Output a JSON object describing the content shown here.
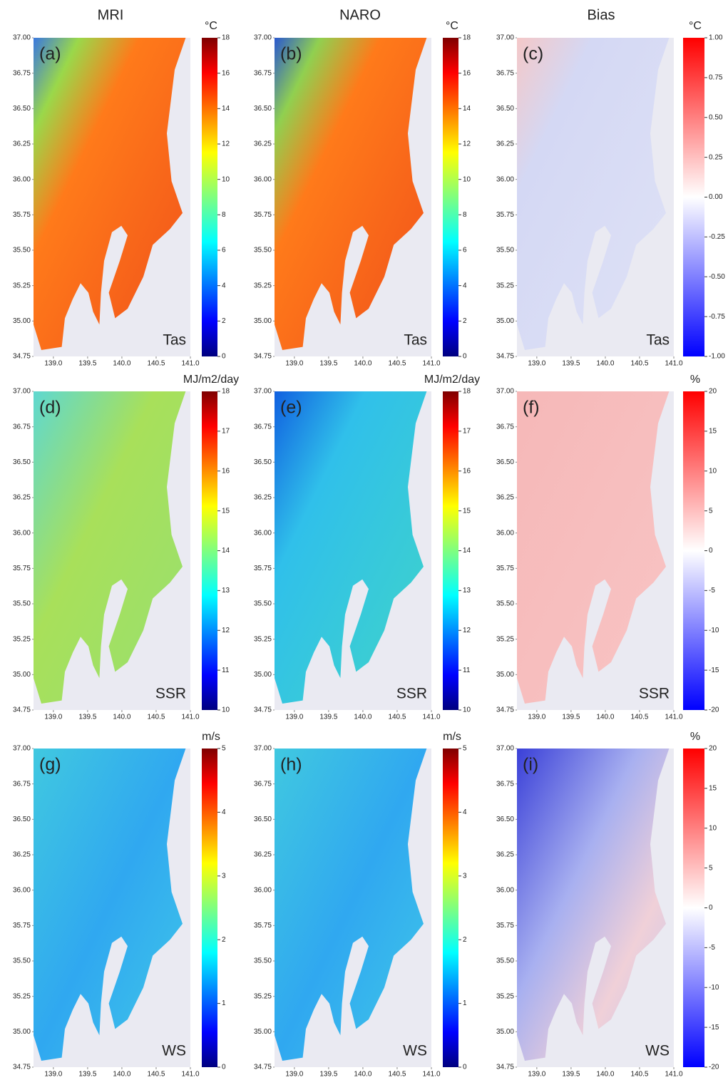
{
  "chart_data": [
    {
      "type": "map",
      "title": "MRI",
      "panel_label": "(a)",
      "variable": "Tas",
      "colorbar_label": "°C",
      "cmap": "jet",
      "xlim": [
        138.71,
        141
      ],
      "ylim": [
        34.75,
        37
      ],
      "xticks": [
        {
          "value": 139,
          "label": "139.0"
        },
        139.5,
        {
          "value": 140,
          "label": "140.0"
        },
        140.5,
        {
          "value": 141,
          "label": "141.0"
        }
      ],
      "yticks": [
        34.75,
        {
          "value": 35,
          "label": "35.00"
        },
        35.25,
        {
          "value": 35.5,
          "label": "35.50"
        },
        35.75,
        {
          "value": 36,
          "label": "36.00"
        },
        36.25,
        {
          "value": 36.5,
          "label": "36.50"
        },
        36.75,
        {
          "value": 37,
          "label": "37.00"
        }
      ],
      "clim": [
        0,
        18
      ],
      "cticks": [
        0,
        2,
        4,
        6,
        8,
        10,
        12,
        14,
        16,
        18
      ]
    },
    {
      "type": "map",
      "title": "NARO",
      "panel_label": "(b)",
      "variable": "Tas",
      "colorbar_label": "°C",
      "cmap": "jet",
      "xlim": [
        138.71,
        141
      ],
      "ylim": [
        34.75,
        37
      ],
      "xticks": [
        {
          "value": 139,
          "label": "139.0"
        },
        139.5,
        {
          "value": 140,
          "label": "140.0"
        },
        140.5,
        {
          "value": 141,
          "label": "141.0"
        }
      ],
      "yticks": [
        34.75,
        {
          "value": 35,
          "label": "35.00"
        },
        35.25,
        {
          "value": 35.5,
          "label": "35.50"
        },
        35.75,
        {
          "value": 36,
          "label": "36.00"
        },
        36.25,
        {
          "value": 36.5,
          "label": "36.50"
        },
        36.75,
        {
          "value": 37,
          "label": "37.00"
        }
      ],
      "clim": [
        0,
        18
      ],
      "cticks": [
        0,
        2,
        4,
        6,
        8,
        10,
        12,
        14,
        16,
        18
      ]
    },
    {
      "type": "map",
      "title": "Bias",
      "panel_label": "(c)",
      "variable": "Tas",
      "colorbar_label": "°C",
      "cmap": "bwr",
      "xlim": [
        138.71,
        141
      ],
      "ylim": [
        34.75,
        37
      ],
      "xticks": [
        {
          "value": 139,
          "label": "139.0"
        },
        139.5,
        {
          "value": 140,
          "label": "140.0"
        },
        140.5,
        {
          "value": 141,
          "label": "141.0"
        }
      ],
      "yticks": [
        34.75,
        {
          "value": 35,
          "label": "35.00"
        },
        35.25,
        {
          "value": 35.5,
          "label": "35.50"
        },
        35.75,
        {
          "value": 36,
          "label": "36.00"
        },
        36.25,
        {
          "value": 36.5,
          "label": "36.50"
        },
        36.75,
        {
          "value": 37,
          "label": "37.00"
        }
      ],
      "clim": [
        -1,
        1
      ],
      "cticks": [
        {
          "value": -1,
          "label": "-1.00"
        },
        -0.75,
        {
          "value": -0.5,
          "label": "-0.50"
        },
        -0.25,
        {
          "value": 0,
          "label": "0.00"
        },
        0.25,
        {
          "value": 0.5,
          "label": "0.50"
        },
        0.75,
        {
          "value": 1,
          "label": "1.00"
        }
      ]
    },
    {
      "type": "map",
      "panel_label": "(d)",
      "variable": "SSR",
      "colorbar_label": "MJ/m2/day",
      "cmap": "jet",
      "xlim": [
        138.71,
        141
      ],
      "ylim": [
        34.75,
        37
      ],
      "xticks": [
        {
          "value": 139,
          "label": "139.0"
        },
        139.5,
        {
          "value": 140,
          "label": "140.0"
        },
        140.5,
        {
          "value": 141,
          "label": "141.0"
        }
      ],
      "yticks": [
        34.75,
        {
          "value": 35,
          "label": "35.00"
        },
        35.25,
        {
          "value": 35.5,
          "label": "35.50"
        },
        35.75,
        {
          "value": 36,
          "label": "36.00"
        },
        36.25,
        {
          "value": 36.5,
          "label": "36.50"
        },
        36.75,
        {
          "value": 37,
          "label": "37.00"
        }
      ],
      "clim": [
        10,
        18
      ],
      "cticks": [
        10,
        11,
        12,
        13,
        14,
        15,
        16,
        17,
        18
      ]
    },
    {
      "type": "map",
      "panel_label": "(e)",
      "variable": "SSR",
      "colorbar_label": "MJ/m2/day",
      "cmap": "jet",
      "xlim": [
        138.71,
        141
      ],
      "ylim": [
        34.75,
        37
      ],
      "xticks": [
        {
          "value": 139,
          "label": "139.0"
        },
        139.5,
        {
          "value": 140,
          "label": "140.0"
        },
        140.5,
        {
          "value": 141,
          "label": "141.0"
        }
      ],
      "yticks": [
        34.75,
        {
          "value": 35,
          "label": "35.00"
        },
        35.25,
        {
          "value": 35.5,
          "label": "35.50"
        },
        35.75,
        {
          "value": 36,
          "label": "36.00"
        },
        36.25,
        {
          "value": 36.5,
          "label": "36.50"
        },
        36.75,
        {
          "value": 37,
          "label": "37.00"
        }
      ],
      "clim": [
        10,
        18
      ],
      "cticks": [
        10,
        11,
        12,
        13,
        14,
        15,
        16,
        17,
        18
      ]
    },
    {
      "type": "map",
      "panel_label": "(f)",
      "variable": "SSR",
      "colorbar_label": "%",
      "cmap": "bwr",
      "xlim": [
        138.71,
        141
      ],
      "ylim": [
        34.75,
        37
      ],
      "xticks": [
        {
          "value": 139,
          "label": "139.0"
        },
        139.5,
        {
          "value": 140,
          "label": "140.0"
        },
        140.5,
        {
          "value": 141,
          "label": "141.0"
        }
      ],
      "yticks": [
        34.75,
        {
          "value": 35,
          "label": "35.00"
        },
        35.25,
        {
          "value": 35.5,
          "label": "35.50"
        },
        35.75,
        {
          "value": 36,
          "label": "36.00"
        },
        36.25,
        {
          "value": 36.5,
          "label": "36.50"
        },
        36.75,
        {
          "value": 37,
          "label": "37.00"
        }
      ],
      "clim": [
        -20,
        20
      ],
      "cticks": [
        -20,
        -15,
        -10,
        -5,
        0,
        5,
        10,
        15,
        20
      ]
    },
    {
      "type": "map",
      "panel_label": "(g)",
      "variable": "WS",
      "colorbar_label": "m/s",
      "cmap": "jet",
      "xlim": [
        138.71,
        141
      ],
      "ylim": [
        34.75,
        37
      ],
      "xticks": [
        {
          "value": 139,
          "label": "139.0"
        },
        139.5,
        {
          "value": 140,
          "label": "140.0"
        },
        140.5,
        {
          "value": 141,
          "label": "141.0"
        }
      ],
      "yticks": [
        34.75,
        {
          "value": 35,
          "label": "35.00"
        },
        35.25,
        {
          "value": 35.5,
          "label": "35.50"
        },
        35.75,
        {
          "value": 36,
          "label": "36.00"
        },
        36.25,
        {
          "value": 36.5,
          "label": "36.50"
        },
        36.75,
        {
          "value": 37,
          "label": "37.00"
        }
      ],
      "clim": [
        0,
        5
      ],
      "cticks": [
        0,
        1,
        2,
        3,
        4,
        5
      ]
    },
    {
      "type": "map",
      "panel_label": "(h)",
      "variable": "WS",
      "colorbar_label": "m/s",
      "cmap": "jet",
      "xlim": [
        138.71,
        141
      ],
      "ylim": [
        34.75,
        37
      ],
      "xticks": [
        {
          "value": 139,
          "label": "139.0"
        },
        139.5,
        {
          "value": 140,
          "label": "140.0"
        },
        140.5,
        {
          "value": 141,
          "label": "141.0"
        }
      ],
      "yticks": [
        34.75,
        {
          "value": 35,
          "label": "35.00"
        },
        35.25,
        {
          "value": 35.5,
          "label": "35.50"
        },
        35.75,
        {
          "value": 36,
          "label": "36.00"
        },
        36.25,
        {
          "value": 36.5,
          "label": "36.50"
        },
        36.75,
        {
          "value": 37,
          "label": "37.00"
        }
      ],
      "clim": [
        0,
        5
      ],
      "cticks": [
        0,
        1,
        2,
        3,
        4,
        5
      ]
    },
    {
      "type": "map",
      "panel_label": "(i)",
      "variable": "WS",
      "colorbar_label": "%",
      "cmap": "bwr",
      "xlim": [
        138.71,
        141
      ],
      "ylim": [
        34.75,
        37
      ],
      "xticks": [
        {
          "value": 139,
          "label": "139.0"
        },
        139.5,
        {
          "value": 140,
          "label": "140.0"
        },
        140.5,
        {
          "value": 141,
          "label": "141.0"
        }
      ],
      "yticks": [
        34.75,
        {
          "value": 35,
          "label": "35.00"
        },
        35.25,
        {
          "value": 35.5,
          "label": "35.50"
        },
        35.75,
        {
          "value": 36,
          "label": "36.00"
        },
        36.25,
        {
          "value": 36.5,
          "label": "36.50"
        },
        36.75,
        {
          "value": 37,
          "label": "37.00"
        }
      ],
      "clim": [
        -20,
        20
      ],
      "cticks": [
        -20,
        -15,
        -10,
        -5,
        0,
        5,
        10,
        15,
        20
      ]
    }
  ]
}
